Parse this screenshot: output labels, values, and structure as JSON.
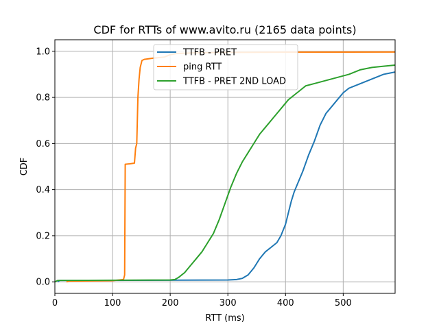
{
  "chart_data": {
    "type": "line",
    "title": "CDF for RTTs of www.avito.ru (2165 data points)",
    "xlabel": "RTT (ms)",
    "ylabel": "CDF",
    "xlim": [
      0,
      590
    ],
    "ylim": [
      -0.05,
      1.05
    ],
    "xticks": [
      0,
      100,
      200,
      300,
      400,
      500
    ],
    "yticks": [
      0.0,
      0.2,
      0.4,
      0.6,
      0.8,
      1.0
    ],
    "xtick_labels": [
      "0",
      "100",
      "200",
      "300",
      "400",
      "500"
    ],
    "ytick_labels": [
      "0.0",
      "0.2",
      "0.4",
      "0.6",
      "0.8",
      "1.0"
    ],
    "grid": true,
    "legend_position": "top-center",
    "series": [
      {
        "name": "TTFB - PRET",
        "color": "#1f77b4",
        "points": [
          [
            5,
            0.0
          ],
          [
            8,
            0.006
          ],
          [
            200,
            0.007
          ],
          [
            300,
            0.008
          ],
          [
            315,
            0.01
          ],
          [
            325,
            0.015
          ],
          [
            335,
            0.03
          ],
          [
            345,
            0.06
          ],
          [
            355,
            0.1
          ],
          [
            365,
            0.13
          ],
          [
            375,
            0.15
          ],
          [
            385,
            0.17
          ],
          [
            392,
            0.2
          ],
          [
            400,
            0.25
          ],
          [
            405,
            0.3
          ],
          [
            410,
            0.35
          ],
          [
            415,
            0.39
          ],
          [
            420,
            0.42
          ],
          [
            430,
            0.48
          ],
          [
            440,
            0.55
          ],
          [
            450,
            0.61
          ],
          [
            460,
            0.68
          ],
          [
            470,
            0.73
          ],
          [
            480,
            0.76
          ],
          [
            490,
            0.79
          ],
          [
            500,
            0.82
          ],
          [
            510,
            0.84
          ],
          [
            520,
            0.85
          ],
          [
            530,
            0.86
          ],
          [
            540,
            0.87
          ],
          [
            550,
            0.88
          ],
          [
            560,
            0.89
          ],
          [
            570,
            0.9
          ],
          [
            580,
            0.905
          ],
          [
            590,
            0.91
          ]
        ]
      },
      {
        "name": "ping RTT",
        "color": "#ff7f0e",
        "points": [
          [
            20,
            0.0
          ],
          [
            25,
            0.003
          ],
          [
            100,
            0.005
          ],
          [
            119,
            0.01
          ],
          [
            121,
            0.03
          ],
          [
            122,
            0.51
          ],
          [
            130,
            0.512
          ],
          [
            138,
            0.515
          ],
          [
            140,
            0.58
          ],
          [
            142,
            0.6
          ],
          [
            143,
            0.7
          ],
          [
            144,
            0.8
          ],
          [
            146,
            0.88
          ],
          [
            148,
            0.93
          ],
          [
            151,
            0.96
          ],
          [
            155,
            0.965
          ],
          [
            170,
            0.97
          ],
          [
            190,
            0.975
          ],
          [
            200,
            0.985
          ],
          [
            210,
            0.99
          ],
          [
            240,
            0.993
          ],
          [
            300,
            0.995
          ],
          [
            400,
            0.996
          ],
          [
            590,
            0.997
          ]
        ]
      },
      {
        "name": "TTFB - PRET 2ND LOAD",
        "color": "#2ca02c",
        "points": [
          [
            0,
            0.0
          ],
          [
            5,
            0.006
          ],
          [
            200,
            0.008
          ],
          [
            208,
            0.01
          ],
          [
            215,
            0.02
          ],
          [
            225,
            0.04
          ],
          [
            235,
            0.07
          ],
          [
            245,
            0.1
          ],
          [
            255,
            0.13
          ],
          [
            265,
            0.17
          ],
          [
            275,
            0.21
          ],
          [
            285,
            0.27
          ],
          [
            295,
            0.34
          ],
          [
            305,
            0.41
          ],
          [
            315,
            0.47
          ],
          [
            325,
            0.52
          ],
          [
            335,
            0.56
          ],
          [
            345,
            0.6
          ],
          [
            355,
            0.64
          ],
          [
            365,
            0.67
          ],
          [
            375,
            0.7
          ],
          [
            385,
            0.73
          ],
          [
            395,
            0.76
          ],
          [
            405,
            0.79
          ],
          [
            415,
            0.81
          ],
          [
            425,
            0.83
          ],
          [
            435,
            0.85
          ],
          [
            450,
            0.86
          ],
          [
            465,
            0.87
          ],
          [
            480,
            0.88
          ],
          [
            495,
            0.89
          ],
          [
            510,
            0.9
          ],
          [
            530,
            0.92
          ],
          [
            550,
            0.93
          ],
          [
            570,
            0.935
          ],
          [
            590,
            0.94
          ]
        ]
      }
    ]
  }
}
